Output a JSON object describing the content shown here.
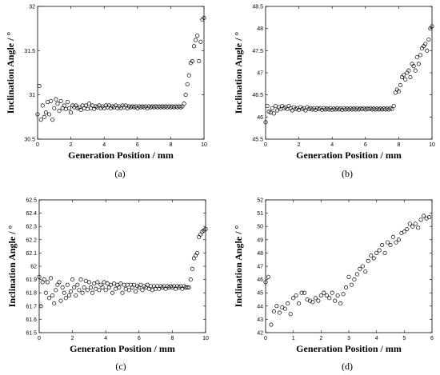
{
  "chart_data": [
    {
      "id": "a",
      "type": "scatter",
      "caption": "(a)",
      "xlabel": "Generation Position / mm",
      "ylabel": "Inclination Angle / °",
      "xlim": [
        0,
        10
      ],
      "ylim": [
        30.5,
        32
      ],
      "xticks": [
        "0",
        "2",
        "4",
        "6",
        "8",
        "10"
      ],
      "yticks": [
        "30.5",
        "31",
        "31.5",
        "32"
      ],
      "marker": "circle",
      "series": [
        {
          "x": [
            0.0,
            0.1,
            0.2,
            0.3,
            0.4,
            0.5,
            0.6,
            0.7,
            0.8,
            0.9,
            1.0,
            1.1,
            1.2,
            1.3,
            1.4,
            1.5,
            1.6,
            1.7,
            1.8,
            1.9,
            2.0,
            2.1,
            2.2,
            2.3,
            2.4,
            2.5,
            2.6,
            2.7,
            2.8,
            2.9,
            3.0,
            3.1,
            3.2,
            3.3,
            3.4,
            3.5,
            3.6,
            3.7,
            3.8,
            3.9,
            4.0,
            4.1,
            4.2,
            4.3,
            4.4,
            4.5,
            4.6,
            4.7,
            4.8,
            4.9,
            5.0,
            5.1,
            5.2,
            5.3,
            5.4,
            5.5,
            5.6,
            5.7,
            5.8,
            5.9,
            6.0,
            6.1,
            6.2,
            6.3,
            6.4,
            6.5,
            6.6,
            6.7,
            6.8,
            6.9,
            7.0,
            7.1,
            7.2,
            7.3,
            7.4,
            7.5,
            7.6,
            7.7,
            7.8,
            7.9,
            8.0,
            8.1,
            8.2,
            8.3,
            8.4,
            8.5,
            8.6,
            8.7,
            8.8,
            8.9,
            9.0,
            9.1,
            9.2,
            9.3,
            9.4,
            9.5,
            9.6,
            9.7,
            9.8,
            9.9,
            10.0
          ],
          "y": [
            30.78,
            31.1,
            30.72,
            30.88,
            30.75,
            30.8,
            30.92,
            30.78,
            30.93,
            30.72,
            30.85,
            30.95,
            30.9,
            30.82,
            30.93,
            30.85,
            30.88,
            30.84,
            30.92,
            30.85,
            30.8,
            30.88,
            30.86,
            30.88,
            30.85,
            30.86,
            30.83,
            30.88,
            30.85,
            30.88,
            30.84,
            30.9,
            30.85,
            30.88,
            30.84,
            30.87,
            30.86,
            30.88,
            30.85,
            30.87,
            30.85,
            30.88,
            30.86,
            30.88,
            30.85,
            30.87,
            30.86,
            30.88,
            30.85,
            30.87,
            30.85,
            30.88,
            30.86,
            30.88,
            30.85,
            30.87,
            30.86,
            30.87,
            30.86,
            30.87,
            30.85,
            30.87,
            30.86,
            30.87,
            30.86,
            30.87,
            30.85,
            30.87,
            30.86,
            30.87,
            30.86,
            30.87,
            30.86,
            30.87,
            30.86,
            30.87,
            30.86,
            30.87,
            30.86,
            30.87,
            30.86,
            30.87,
            30.86,
            30.87,
            30.86,
            30.87,
            30.86,
            30.87,
            30.9,
            31.0,
            31.12,
            31.22,
            31.36,
            31.38,
            31.55,
            31.62,
            31.67,
            31.38,
            31.6,
            31.85,
            31.87
          ]
        }
      ]
    },
    {
      "id": "b",
      "type": "scatter",
      "caption": "(b)",
      "xlabel": "Generation Position / mm",
      "ylabel": "Inclination Angle / °",
      "xlim": [
        0,
        10
      ],
      "ylim": [
        45.5,
        48.5
      ],
      "xticks": [
        "0",
        "2",
        "4",
        "6",
        "8",
        "10"
      ],
      "yticks": [
        "45.5",
        "46",
        "46.5",
        "47",
        "47.5",
        "48",
        "48.5"
      ],
      "marker": "circle",
      "series": [
        {
          "x": [
            0.0,
            0.1,
            0.2,
            0.3,
            0.4,
            0.5,
            0.6,
            0.7,
            0.8,
            0.9,
            1.0,
            1.1,
            1.2,
            1.3,
            1.4,
            1.5,
            1.6,
            1.7,
            1.8,
            1.9,
            2.0,
            2.1,
            2.2,
            2.3,
            2.4,
            2.5,
            2.6,
            2.7,
            2.8,
            2.9,
            3.0,
            3.1,
            3.2,
            3.3,
            3.4,
            3.5,
            3.6,
            3.7,
            3.8,
            3.9,
            4.0,
            4.1,
            4.2,
            4.3,
            4.4,
            4.5,
            4.6,
            4.7,
            4.8,
            4.9,
            5.0,
            5.1,
            5.2,
            5.3,
            5.4,
            5.5,
            5.6,
            5.7,
            5.8,
            5.9,
            6.0,
            6.1,
            6.2,
            6.3,
            6.4,
            6.5,
            6.6,
            6.7,
            6.8,
            6.9,
            7.0,
            7.1,
            7.2,
            7.3,
            7.4,
            7.5,
            7.6,
            7.7,
            7.8,
            7.9,
            8.0,
            8.1,
            8.2,
            8.3,
            8.4,
            8.5,
            8.6,
            8.7,
            8.8,
            8.9,
            9.0,
            9.1,
            9.2,
            9.3,
            9.4,
            9.5,
            9.6,
            9.7,
            9.8,
            9.9,
            10.0
          ],
          "y": [
            45.88,
            46.25,
            46.12,
            46.1,
            46.2,
            46.08,
            46.25,
            46.15,
            46.22,
            46.18,
            46.25,
            46.2,
            46.22,
            46.18,
            46.25,
            46.2,
            46.15,
            46.22,
            46.18,
            46.2,
            46.16,
            46.22,
            46.18,
            46.2,
            46.15,
            46.22,
            46.18,
            46.2,
            46.17,
            46.2,
            46.16,
            46.2,
            46.18,
            46.2,
            46.16,
            46.2,
            46.17,
            46.19,
            46.17,
            46.2,
            46.16,
            46.19,
            46.17,
            46.2,
            46.17,
            46.19,
            46.16,
            46.2,
            46.17,
            46.19,
            46.17,
            46.2,
            46.17,
            46.19,
            46.17,
            46.2,
            46.17,
            46.19,
            46.18,
            46.2,
            46.17,
            46.19,
            46.18,
            46.2,
            46.17,
            46.19,
            46.17,
            46.19,
            46.17,
            46.19,
            46.17,
            46.19,
            46.17,
            46.19,
            46.17,
            46.2,
            46.18,
            46.25,
            46.55,
            46.62,
            46.58,
            46.72,
            46.9,
            46.95,
            46.85,
            47.0,
            47.05,
            46.9,
            47.2,
            47.15,
            47.05,
            47.35,
            47.2,
            47.4,
            47.55,
            47.6,
            47.65,
            47.5,
            47.75,
            48.0,
            48.05
          ]
        }
      ]
    },
    {
      "id": "c",
      "type": "scatter",
      "caption": "(c)",
      "xlabel": "Generation Position / mm",
      "ylabel": "Inclination Angle / °",
      "xlim": [
        0,
        10
      ],
      "ylim": [
        61.5,
        62.5
      ],
      "xticks": [
        "0",
        "2",
        "4",
        "6",
        "8",
        "10"
      ],
      "yticks": [
        "61.5",
        "61.6",
        "61.7",
        "61.8",
        "61.9",
        "62",
        "62.1",
        "62.2",
        "62.3",
        "62.4",
        "62.5"
      ],
      "marker": "circle",
      "series": [
        {
          "x": [
            0.0,
            0.1,
            0.2,
            0.3,
            0.4,
            0.5,
            0.6,
            0.7,
            0.8,
            0.9,
            1.0,
            1.1,
            1.2,
            1.3,
            1.4,
            1.5,
            1.6,
            1.7,
            1.8,
            1.9,
            2.0,
            2.1,
            2.2,
            2.3,
            2.4,
            2.5,
            2.6,
            2.7,
            2.8,
            2.9,
            3.0,
            3.1,
            3.2,
            3.3,
            3.4,
            3.5,
            3.6,
            3.7,
            3.8,
            3.9,
            4.0,
            4.1,
            4.2,
            4.3,
            4.4,
            4.5,
            4.6,
            4.7,
            4.8,
            4.9,
            5.0,
            5.1,
            5.2,
            5.3,
            5.4,
            5.5,
            5.6,
            5.7,
            5.8,
            5.9,
            6.0,
            6.1,
            6.2,
            6.3,
            6.4,
            6.5,
            6.6,
            6.7,
            6.8,
            6.9,
            7.0,
            7.1,
            7.2,
            7.3,
            7.4,
            7.5,
            7.6,
            7.7,
            7.8,
            7.9,
            8.0,
            8.1,
            8.2,
            8.3,
            8.4,
            8.5,
            8.6,
            8.7,
            8.8,
            8.9,
            9.0,
            9.1,
            9.2,
            9.3,
            9.4,
            9.5,
            9.6,
            9.7,
            9.8,
            9.9,
            10.0
          ],
          "y": [
            61.92,
            61.7,
            61.88,
            61.9,
            61.8,
            61.88,
            61.76,
            61.91,
            61.78,
            61.72,
            61.82,
            61.86,
            61.88,
            61.74,
            61.84,
            61.8,
            61.76,
            61.86,
            61.78,
            61.81,
            61.9,
            61.84,
            61.78,
            61.86,
            61.82,
            61.9,
            61.8,
            61.84,
            61.89,
            61.82,
            61.88,
            61.84,
            61.8,
            61.87,
            61.83,
            61.88,
            61.82,
            61.86,
            61.84,
            61.88,
            61.82,
            61.87,
            61.84,
            61.86,
            61.8,
            61.87,
            61.83,
            61.86,
            61.84,
            61.87,
            61.8,
            61.86,
            61.83,
            61.86,
            61.82,
            61.86,
            61.84,
            61.86,
            61.81,
            61.85,
            61.84,
            61.86,
            61.82,
            61.85,
            61.84,
            61.86,
            61.83,
            61.85,
            61.82,
            61.85,
            61.83,
            61.85,
            61.83,
            61.85,
            61.84,
            61.85,
            61.83,
            61.85,
            61.84,
            61.85,
            61.84,
            61.85,
            61.83,
            61.85,
            61.84,
            61.85,
            61.83,
            61.85,
            61.84,
            61.84,
            61.84,
            61.9,
            61.98,
            62.06,
            62.08,
            62.1,
            62.22,
            62.24,
            62.26,
            62.27,
            62.28
          ]
        }
      ]
    },
    {
      "id": "d",
      "type": "scatter",
      "caption": "(d)",
      "xlabel": "Generation Position / mm",
      "ylabel": "Inclination Angle / °",
      "xlim": [
        0,
        6
      ],
      "ylim": [
        42,
        52
      ],
      "xticks": [
        "0",
        "1",
        "2",
        "3",
        "4",
        "5",
        "6"
      ],
      "yticks": [
        "42",
        "43",
        "44",
        "45",
        "46",
        "47",
        "48",
        "49",
        "50",
        "51",
        "52"
      ],
      "marker": "circle",
      "series": [
        {
          "x": [
            0.0,
            0.1,
            0.2,
            0.3,
            0.4,
            0.5,
            0.6,
            0.7,
            0.8,
            0.9,
            1.0,
            1.1,
            1.2,
            1.3,
            1.4,
            1.5,
            1.6,
            1.7,
            1.8,
            1.9,
            2.0,
            2.1,
            2.2,
            2.3,
            2.4,
            2.5,
            2.6,
            2.7,
            2.8,
            2.9,
            3.0,
            3.1,
            3.2,
            3.3,
            3.4,
            3.5,
            3.6,
            3.7,
            3.8,
            3.9,
            4.0,
            4.1,
            4.2,
            4.3,
            4.4,
            4.5,
            4.6,
            4.7,
            4.8,
            4.9,
            5.0,
            5.1,
            5.2,
            5.3,
            5.4,
            5.5,
            5.6,
            5.7,
            5.8,
            5.9
          ],
          "y": [
            45.8,
            46.2,
            42.6,
            43.6,
            44.0,
            43.5,
            43.9,
            43.8,
            44.2,
            43.4,
            44.6,
            44.8,
            44.2,
            45.0,
            45.0,
            44.5,
            44.4,
            44.3,
            44.6,
            44.4,
            44.8,
            45.0,
            44.8,
            44.6,
            45.0,
            44.4,
            44.8,
            44.2,
            44.9,
            45.4,
            46.2,
            45.6,
            46.0,
            46.4,
            46.8,
            47.0,
            46.6,
            47.4,
            47.8,
            47.6,
            48.0,
            48.2,
            48.6,
            48.0,
            48.8,
            48.6,
            49.2,
            48.8,
            49.0,
            49.5,
            49.6,
            49.8,
            50.2,
            50.0,
            50.2,
            49.9,
            50.5,
            50.8,
            50.6,
            50.7
          ]
        }
      ]
    }
  ]
}
